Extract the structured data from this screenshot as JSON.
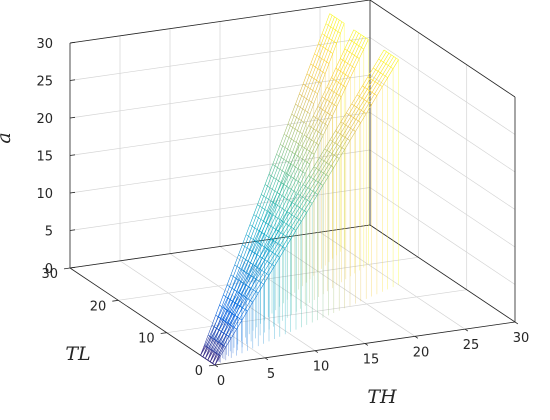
{
  "chart_data": {
    "type": "surface",
    "title": "",
    "xlabel": "TH",
    "ylabel": "TL",
    "zlabel": "a",
    "xlim": [
      0,
      30
    ],
    "ylim": [
      0,
      30
    ],
    "zlim": [
      0,
      30
    ],
    "xticks": [
      "0",
      "5",
      "10",
      "15",
      "20",
      "25",
      "30"
    ],
    "yticks": [
      "0",
      "10",
      "20",
      "30"
    ],
    "zticks": [
      "0",
      "5",
      "10",
      "15",
      "20",
      "25",
      "30"
    ],
    "grid": true,
    "colormap": "parula",
    "surfaces": [
      {
        "th_range": [
          0,
          25
        ],
        "slope_dTL_dTH": 1.0,
        "tl_range": [
          0,
          3
        ],
        "a_range": [
          0,
          30
        ]
      },
      {
        "th_range": [
          0,
          25
        ],
        "slope_dTL_dTH": 0.8,
        "tl_range": [
          0,
          3
        ],
        "a_range": [
          0,
          30
        ]
      },
      {
        "th_range": [
          0,
          25
        ],
        "slope_dTL_dTH": 0.55,
        "tl_range": [
          0,
          3
        ],
        "a_range": [
          0,
          30
        ]
      }
    ]
  },
  "colors": {
    "axis": "#262626",
    "grid": "#d4d4d4",
    "parula": [
      "#352a87",
      "#0363e1",
      "#1485d4",
      "#06a7c6",
      "#38b99e",
      "#92bf73",
      "#d9ba56",
      "#fcce2e",
      "#f9fb0e"
    ]
  }
}
